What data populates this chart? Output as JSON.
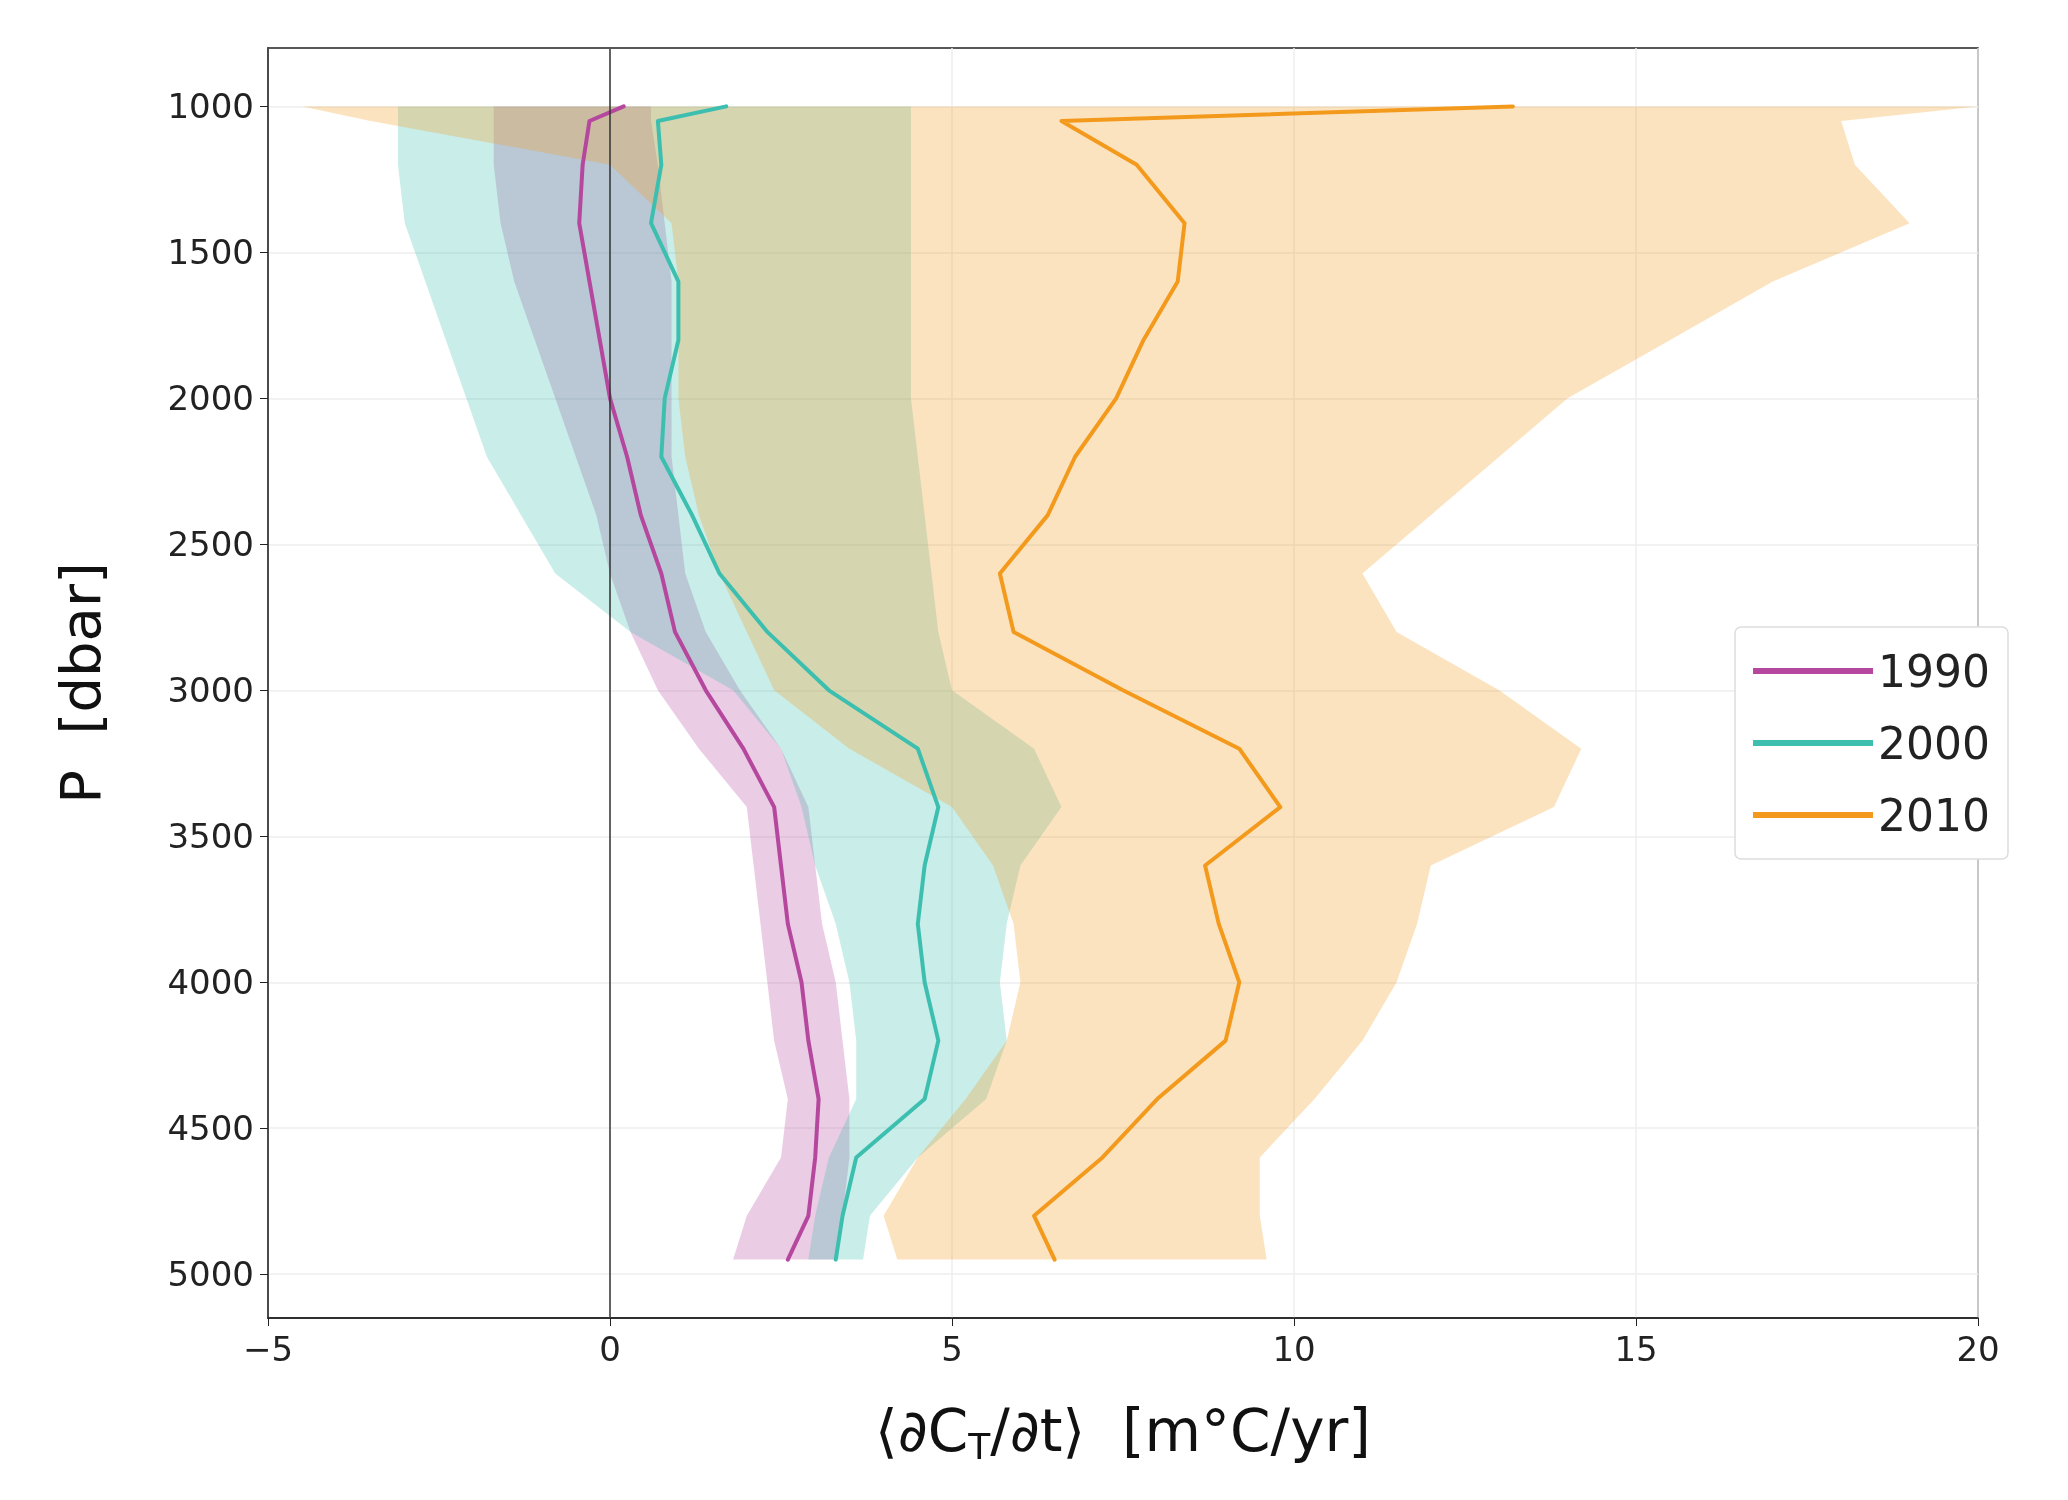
{
  "chart_data": {
    "type": "line",
    "orientation": "horizontal",
    "xlabel": "⟨∂C$_{T}$/∂t⟩  [m°C/yr]",
    "ylabel": "P  [dbar]",
    "x": [
      1000,
      1050,
      1200,
      1400,
      1600,
      1800,
      2000,
      2200,
      2400,
      2600,
      2800,
      3000,
      3200,
      3400,
      3600,
      3800,
      4000,
      4200,
      4400,
      4600,
      4800,
      4950
    ],
    "series": [
      {
        "name": "1990",
        "color": "#b5479e",
        "values": [
          0.2,
          -0.3,
          -0.4,
          -0.45,
          -0.3,
          -0.15,
          0,
          0.25,
          0.45,
          0.75,
          0.95,
          1.4,
          1.95,
          2.4,
          2.5,
          2.6,
          2.8,
          2.9,
          3.05,
          3.0,
          2.9,
          2.6
        ],
        "lower": [
          -1.7,
          -1.7,
          -1.7,
          -1.6,
          -1.4,
          -1.1,
          -0.8,
          -0.5,
          -0.2,
          0,
          0.3,
          0.7,
          1.3,
          2.0,
          2.1,
          2.2,
          2.3,
          2.4,
          2.6,
          2.5,
          2.0,
          1.8
        ],
        "upper": [
          0.6,
          0.6,
          0.7,
          0.8,
          0.9,
          0.9,
          0.9,
          0.9,
          1.0,
          1.1,
          1.4,
          1.9,
          2.5,
          2.9,
          3.0,
          3.1,
          3.3,
          3.4,
          3.5,
          3.5,
          3.4,
          3.3
        ]
      },
      {
        "name": "2000",
        "color": "#3dbfb0",
        "values": [
          1.7,
          0.7,
          0.75,
          0.6,
          1.0,
          1.0,
          0.8,
          0.75,
          1.2,
          1.6,
          2.3,
          3.2,
          4.5,
          4.8,
          4.6,
          4.5,
          4.6,
          4.8,
          4.6,
          3.6,
          3.4,
          3.3
        ],
        "lower": [
          -3.1,
          -3.1,
          -3.1,
          -3.0,
          -2.7,
          -2.4,
          -2.1,
          -1.8,
          -1.3,
          -0.8,
          0.3,
          1.8,
          2.5,
          2.8,
          3.0,
          3.3,
          3.5,
          3.6,
          3.6,
          3.2,
          3.0,
          2.9
        ],
        "upper": [
          4.4,
          4.4,
          4.4,
          4.4,
          4.4,
          4.4,
          4.4,
          4.5,
          4.6,
          4.7,
          4.8,
          5.0,
          6.2,
          6.6,
          6.0,
          5.8,
          5.7,
          5.8,
          5.5,
          4.5,
          3.8,
          3.7
        ]
      },
      {
        "name": "2010",
        "color": "#f39a1d",
        "values": [
          13.2,
          6.6,
          7.7,
          8.4,
          8.3,
          7.8,
          7.4,
          6.8,
          6.4,
          5.7,
          5.9,
          7.5,
          9.2,
          9.8,
          8.7,
          8.9,
          9.2,
          9.0,
          8.0,
          7.2,
          6.2,
          6.5
        ],
        "lower": [
          -4.5,
          -3.5,
          0,
          0.9,
          1.0,
          1.0,
          1.0,
          1.1,
          1.3,
          1.6,
          2.0,
          2.4,
          3.5,
          5.0,
          5.6,
          5.9,
          6.0,
          5.8,
          5.2,
          4.5,
          4.0,
          4.2
        ],
        "upper": [
          20,
          18.0,
          18.2,
          19.0,
          17.0,
          15.5,
          14.0,
          13.0,
          12.0,
          11.0,
          11.5,
          13.0,
          14.2,
          13.8,
          12.0,
          11.8,
          11.5,
          11.0,
          10.3,
          9.5,
          9.5,
          9.6
        ]
      }
    ],
    "xlim": [
      -5,
      20
    ],
    "xticks": [
      -5,
      0,
      5,
      10,
      15,
      20
    ],
    "ylim": [
      5150,
      800
    ],
    "yticks": [
      1000,
      1500,
      2000,
      2500,
      3000,
      3500,
      4000,
      4500,
      5000
    ],
    "ref_lines": [
      {
        "axis": "x",
        "value": 0,
        "color": "#333333"
      }
    ],
    "grid": true,
    "legend": "right",
    "line_style": "solid",
    "marker": "none"
  }
}
